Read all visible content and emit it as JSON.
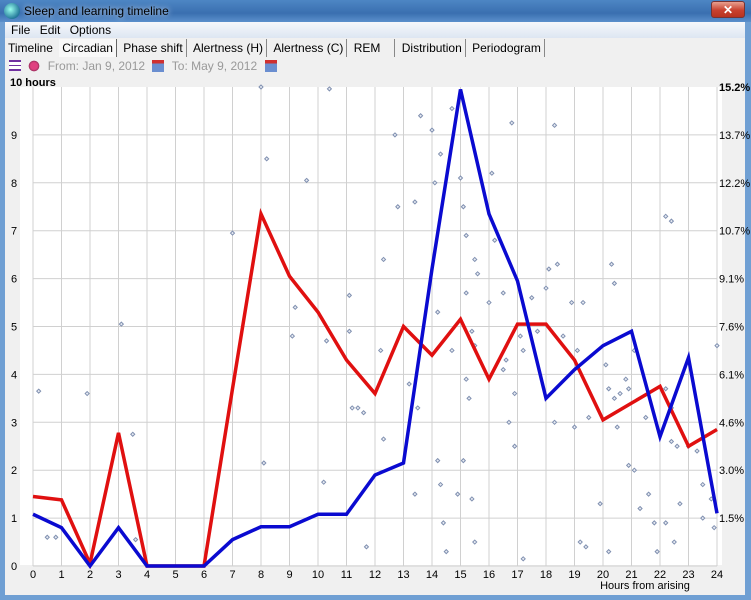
{
  "window": {
    "title": "Sleep and learning timeline",
    "close_label": "✕"
  },
  "menu": [
    {
      "label": "File"
    },
    {
      "label": "Edit"
    },
    {
      "label": "Options"
    }
  ],
  "tabs": [
    {
      "label": "Timeline"
    },
    {
      "label": "Circadian",
      "active": true
    },
    {
      "label": "Phase shift"
    },
    {
      "label": "Alertness (H)"
    },
    {
      "label": "Alertness (C)"
    },
    {
      "label": "REM"
    },
    {
      "label": "Distribution"
    },
    {
      "label": "Periodogram"
    }
  ],
  "toolbar": {
    "from": "From: Jan 9, 2012",
    "to": "To: May 9, 2012",
    "icons": [
      "menu-icon",
      "bug-icon",
      "calendar-icon",
      "calendar-icon"
    ]
  },
  "chart_data": {
    "type": "line",
    "xlabel": "Hours from arising",
    "ylabel": "10 hours",
    "xlim": [
      0,
      24
    ],
    "ylim": [
      0,
      10
    ],
    "x_ticks": [
      0,
      1,
      2,
      3,
      4,
      5,
      6,
      7,
      8,
      9,
      10,
      11,
      12,
      13,
      14,
      15,
      16,
      17,
      18,
      19,
      20,
      21,
      22,
      23,
      24
    ],
    "y_ticks": [
      0,
      1,
      2,
      3,
      4,
      5,
      6,
      7,
      8,
      9
    ],
    "y2_ticks": [
      "1.5%",
      "3.0%",
      "4.6%",
      "6.1%",
      "7.6%",
      "9.1%",
      "10.7%",
      "12.2%",
      "13.7%",
      "15.2%"
    ],
    "grid": true,
    "series": [
      {
        "color": "#e01010",
        "values": [
          1.45,
          1.38,
          0.05,
          2.78,
          0,
          0,
          0,
          3.7,
          7.35,
          6.05,
          5.3,
          4.3,
          3.6,
          5.0,
          4.4,
          5.15,
          3.9,
          5.05,
          5.05,
          4.3,
          3.05,
          3.4,
          3.75,
          2.5,
          2.85
        ]
      },
      {
        "color": "#0a0ad0",
        "values": [
          1.08,
          0.8,
          0,
          0.8,
          0,
          0,
          0,
          0.55,
          0.82,
          0.82,
          1.08,
          1.08,
          1.9,
          2.15,
          6.2,
          9.95,
          7.35,
          5.95,
          3.5,
          4.1,
          4.6,
          4.9,
          2.7,
          4.35,
          1.1
        ]
      }
    ],
    "scatter_color": "#8090b0",
    "scatter": [
      [
        0.2,
        3.65
      ],
      [
        0.5,
        0.6
      ],
      [
        0.8,
        0.6
      ],
      [
        1.9,
        3.6
      ],
      [
        3.1,
        5.05
      ],
      [
        3.5,
        2.75
      ],
      [
        3.6,
        0.55
      ],
      [
        7,
        6.95
      ],
      [
        8,
        10
      ],
      [
        8.2,
        8.5
      ],
      [
        8.1,
        2.15
      ],
      [
        9.6,
        8.05
      ],
      [
        9.1,
        4.8
      ],
      [
        9.2,
        5.4
      ],
      [
        10.4,
        9.96
      ],
      [
        10.3,
        4.7
      ],
      [
        10.2,
        1.75
      ],
      [
        11.1,
        5.65
      ],
      [
        11.1,
        4.9
      ],
      [
        11.2,
        3.3
      ],
      [
        11.4,
        3.3
      ],
      [
        11.6,
        3.2
      ],
      [
        11.7,
        0.4
      ],
      [
        12.3,
        6.4
      ],
      [
        12.2,
        4.5
      ],
      [
        12.3,
        2.65
      ],
      [
        12.7,
        9
      ],
      [
        12.8,
        7.5
      ],
      [
        13.4,
        7.6
      ],
      [
        13.6,
        9.4
      ],
      [
        13.2,
        3.8
      ],
      [
        13.4,
        1.5
      ],
      [
        13.5,
        3.3
      ],
      [
        14,
        9.1
      ],
      [
        14.1,
        8
      ],
      [
        14.3,
        8.6
      ],
      [
        14.2,
        5.3
      ],
      [
        14.2,
        2.2
      ],
      [
        14.3,
        1.7
      ],
      [
        14.4,
        0.9
      ],
      [
        14.5,
        0.3
      ],
      [
        14.7,
        9.55
      ],
      [
        14.7,
        4.5
      ],
      [
        14.9,
        1.5
      ],
      [
        15,
        8.1
      ],
      [
        15.1,
        7.5
      ],
      [
        15.2,
        6.9
      ],
      [
        15.2,
        5.7
      ],
      [
        15.5,
        6.4
      ],
      [
        15.6,
        6.1
      ],
      [
        15.4,
        4.9
      ],
      [
        15.5,
        4.6
      ],
      [
        15.2,
        3.9
      ],
      [
        15.3,
        3.5
      ],
      [
        15.1,
        2.2
      ],
      [
        15.4,
        1.4
      ],
      [
        15.5,
        0.5
      ],
      [
        16,
        5.5
      ],
      [
        16.1,
        8.2
      ],
      [
        16.2,
        6.8
      ],
      [
        16.5,
        5.7
      ],
      [
        16.6,
        4.3
      ],
      [
        16.5,
        4.1
      ],
      [
        16.7,
        3.0
      ],
      [
        16.9,
        3.6
      ],
      [
        16.8,
        9.25
      ],
      [
        17.1,
        4.8
      ],
      [
        17.2,
        4.5
      ],
      [
        16.9,
        2.5
      ],
      [
        17.2,
        0.15
      ],
      [
        17.5,
        5.6
      ],
      [
        17.7,
        4.9
      ],
      [
        18,
        5.8
      ],
      [
        18.1,
        6.2
      ],
      [
        18.3,
        9.2
      ],
      [
        18.4,
        6.3
      ],
      [
        18.3,
        3.0
      ],
      [
        18.6,
        4.8
      ],
      [
        18.9,
        5.5
      ],
      [
        19.1,
        4.5
      ],
      [
        19,
        2.9
      ],
      [
        19.3,
        5.5
      ],
      [
        19.5,
        3.1
      ],
      [
        19.2,
        0.5
      ],
      [
        19.4,
        0.4
      ],
      [
        19.9,
        1.3
      ],
      [
        20.3,
        6.3
      ],
      [
        20.4,
        5.9
      ],
      [
        20.1,
        4.2
      ],
      [
        20.2,
        3.7
      ],
      [
        20.4,
        3.5
      ],
      [
        20.6,
        3.6
      ],
      [
        20.5,
        2.9
      ],
      [
        20.8,
        3.9
      ],
      [
        20.9,
        3.7
      ],
      [
        21.1,
        4.5
      ],
      [
        21.1,
        2.0
      ],
      [
        21.5,
        3.1
      ],
      [
        21.6,
        1.5
      ],
      [
        21.8,
        0.9
      ],
      [
        21.9,
        0.3
      ],
      [
        20.2,
        0.3
      ],
      [
        22.2,
        3.7
      ],
      [
        22.4,
        3.3
      ],
      [
        22.4,
        2.6
      ],
      [
        22.6,
        2.5
      ],
      [
        22.2,
        0.9
      ],
      [
        22.5,
        0.5
      ],
      [
        22.2,
        7.3
      ],
      [
        22.4,
        7.2
      ],
      [
        23,
        2.5
      ],
      [
        22.7,
        1.3
      ],
      [
        23.3,
        2.4
      ],
      [
        23.5,
        1.7
      ],
      [
        23.8,
        1.4
      ],
      [
        24,
        4.6
      ],
      [
        23.9,
        0.8
      ],
      [
        23.5,
        1.0
      ],
      [
        21.3,
        1.2
      ],
      [
        20.9,
        2.1
      ]
    ]
  }
}
